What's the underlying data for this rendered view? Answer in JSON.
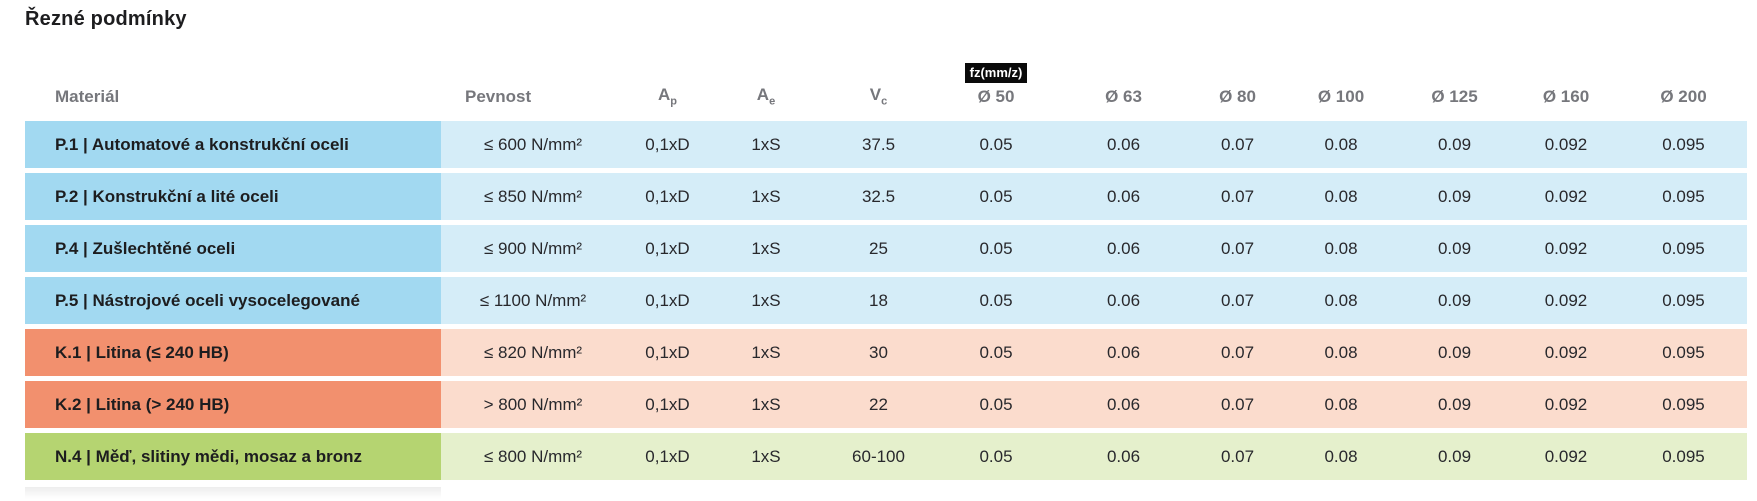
{
  "page": {
    "title": "Řezné podmínky"
  },
  "table": {
    "header": {
      "material": "Materiál",
      "pevnost": "Pevnost",
      "ap": {
        "base": "A",
        "sub": "p"
      },
      "ae": {
        "base": "A",
        "sub": "e"
      },
      "vc": {
        "base": "V",
        "sub": "c"
      },
      "fz_badge": "fz(mm/z)",
      "diameters": [
        "Ø 50",
        "Ø 63",
        "Ø 80",
        "Ø 100",
        "Ø 125",
        "Ø 160",
        "Ø 200"
      ]
    },
    "colors": {
      "steel": {
        "strong": "#a2d9f1",
        "light": "#d5edf8"
      },
      "cast_iron": {
        "strong": "#f2906e",
        "light": "#fbdccd"
      },
      "nonferrous": {
        "strong": "#b5d471",
        "light": "#e5f0cc"
      }
    },
    "rows": [
      {
        "group": "steel",
        "material": "P.1 | Automatové a konstrukční oceli",
        "pevnost": "≤ 600 N/mm²",
        "ap": "0,1xD",
        "ae": "1xS",
        "vc": "37.5",
        "fz": [
          "0.05",
          "0.06",
          "0.07",
          "0.08",
          "0.09",
          "0.092",
          "0.095"
        ]
      },
      {
        "group": "steel",
        "material": "P.2 | Konstrukční a lité oceli",
        "pevnost": "≤ 850 N/mm²",
        "ap": "0,1xD",
        "ae": "1xS",
        "vc": "32.5",
        "fz": [
          "0.05",
          "0.06",
          "0.07",
          "0.08",
          "0.09",
          "0.092",
          "0.095"
        ]
      },
      {
        "group": "steel",
        "material": "P.4 | Zušlechtěné oceli",
        "pevnost": "≤ 900 N/mm²",
        "ap": "0,1xD",
        "ae": "1xS",
        "vc": "25",
        "fz": [
          "0.05",
          "0.06",
          "0.07",
          "0.08",
          "0.09",
          "0.092",
          "0.095"
        ]
      },
      {
        "group": "steel",
        "material": "P.5 | Nástrojové oceli vysocelegované",
        "pevnost": "≤ 1100 N/mm²",
        "ap": "0,1xD",
        "ae": "1xS",
        "vc": "18",
        "fz": [
          "0.05",
          "0.06",
          "0.07",
          "0.08",
          "0.09",
          "0.092",
          "0.095"
        ]
      },
      {
        "group": "cast_iron",
        "material": "K.1 | Litina (≤ 240 HB)",
        "pevnost": "≤ 820 N/mm²",
        "ap": "0,1xD",
        "ae": "1xS",
        "vc": "30",
        "fz": [
          "0.05",
          "0.06",
          "0.07",
          "0.08",
          "0.09",
          "0.092",
          "0.095"
        ]
      },
      {
        "group": "cast_iron",
        "material": "K.2 | Litina (> 240 HB)",
        "pevnost": "> 800 N/mm²",
        "ap": "0,1xD",
        "ae": "1xS",
        "vc": "22",
        "fz": [
          "0.05",
          "0.06",
          "0.07",
          "0.08",
          "0.09",
          "0.092",
          "0.095"
        ]
      },
      {
        "group": "nonferrous",
        "material": "N.4 | Měď, slitiny mědi, mosaz a bronz",
        "pevnost": "≤ 800 N/mm²",
        "ap": "0,1xD",
        "ae": "1xS",
        "vc": "60-100",
        "fz": [
          "0.05",
          "0.06",
          "0.07",
          "0.08",
          "0.09",
          "0.092",
          "0.095"
        ]
      }
    ]
  }
}
